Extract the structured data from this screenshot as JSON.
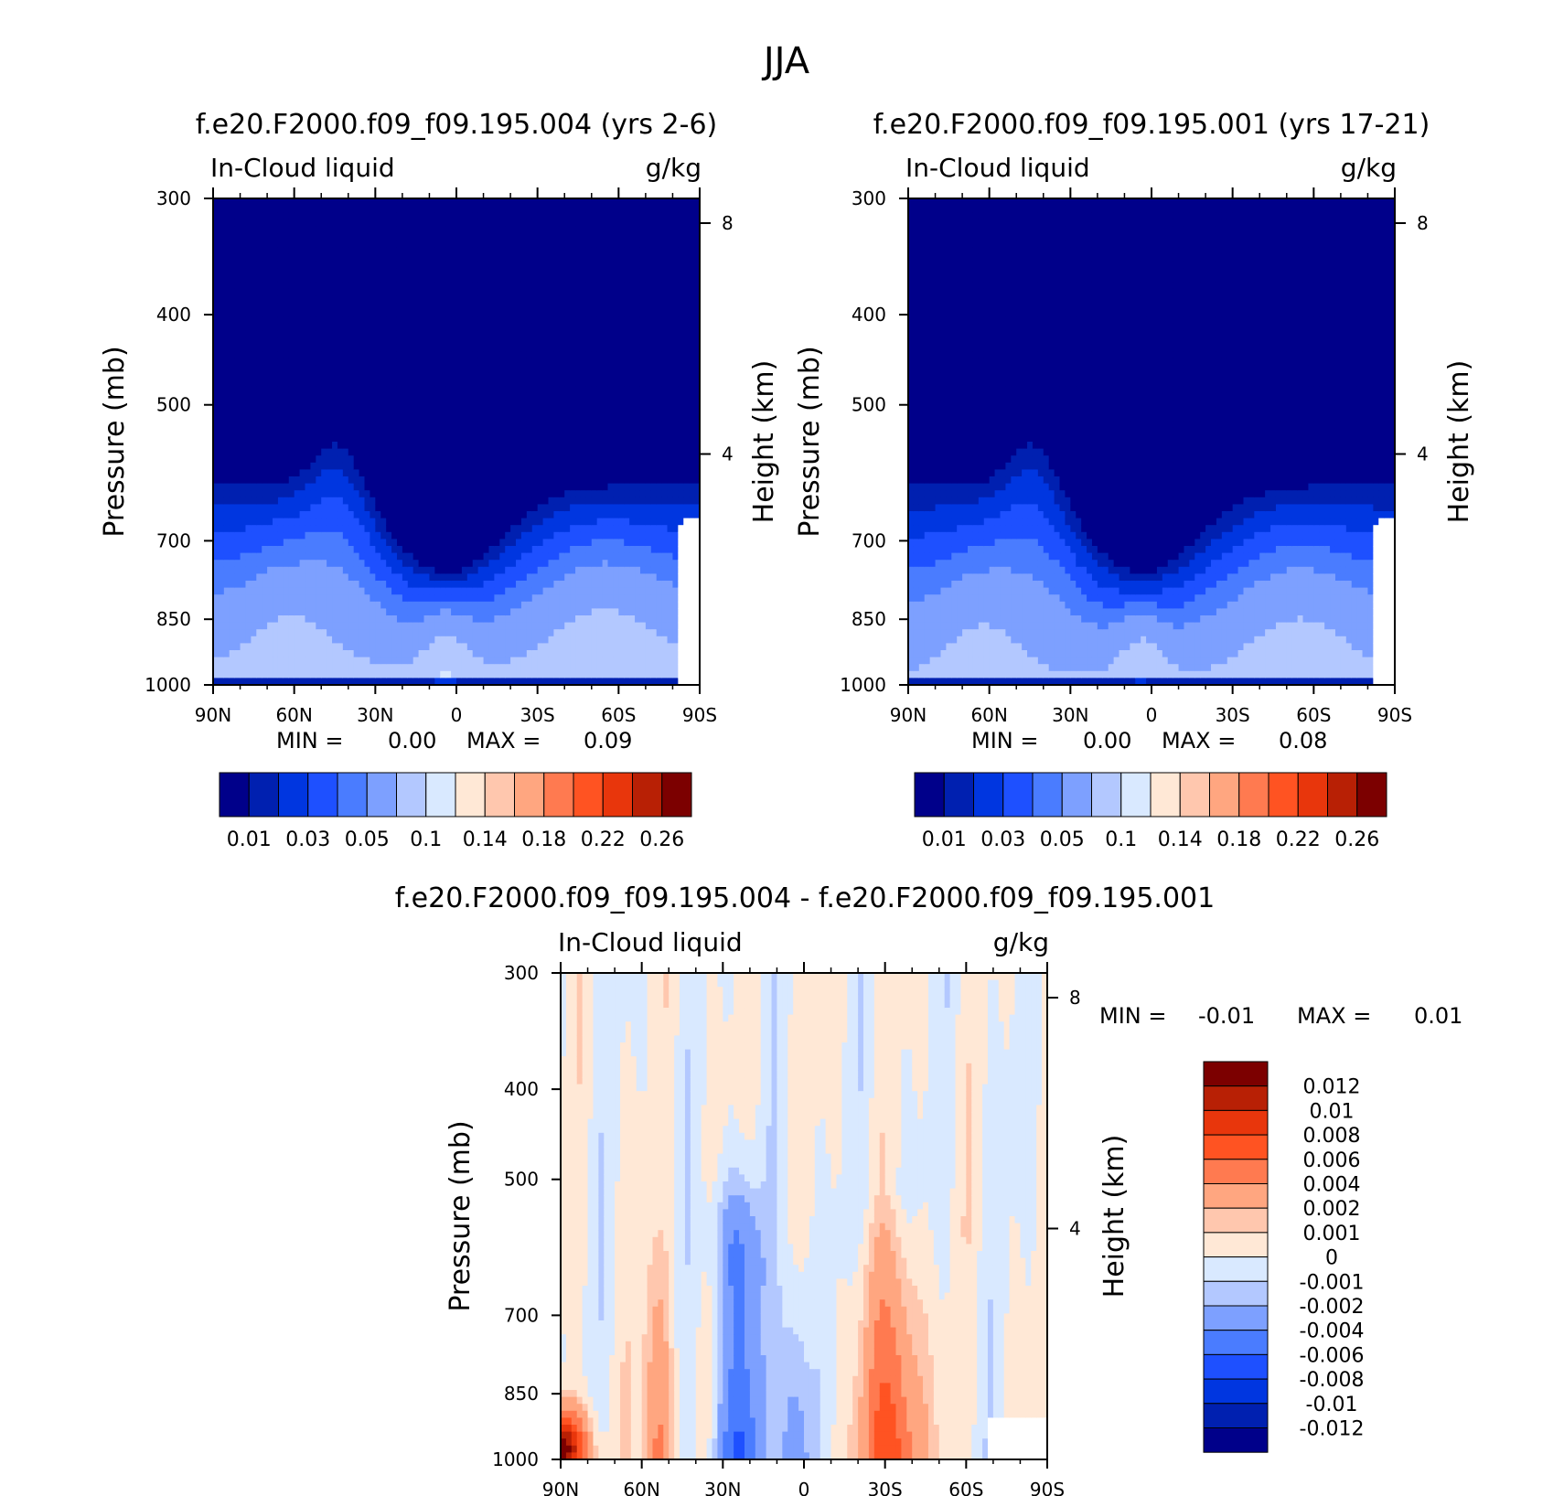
{
  "season": "JJA",
  "chart_data": [
    {
      "type": "heatmap",
      "title": "f.e20.F2000.f09_f09.195.004 (yrs 2-6)",
      "variable": "In-Cloud liquid",
      "units": "g/kg",
      "xlabel": "",
      "ylabel": "Pressure (mb)",
      "y2label": "Height (km)",
      "x_ticks": [
        "90N",
        "60N",
        "30N",
        "0",
        "30S",
        "60S",
        "90S"
      ],
      "xlim": [
        90,
        -90
      ],
      "y_ticks": [
        "300",
        "400",
        "500",
        "700",
        "850",
        "1000"
      ],
      "ylim": [
        1000,
        300
      ],
      "y_scale": "log",
      "y2_ticks": [
        "8",
        "4"
      ],
      "stats": {
        "min_label": "MIN =",
        "min": "0.00",
        "max_label": "MAX =",
        "max": "0.09"
      },
      "colorbar": {
        "orientation": "horizontal",
        "labels": [
          "0.01",
          "0.03",
          "0.05",
          "0.1",
          "0.14",
          "0.18",
          "0.22",
          "0.26"
        ],
        "colors": [
          "#00008a",
          "#0020b0",
          "#0036e0",
          "#1e50ff",
          "#4a7cff",
          "#7da0ff",
          "#b3c8ff",
          "#d9e9ff",
          "#ffe8d6",
          "#ffc7ae",
          "#ffa680",
          "#ff7a50",
          "#ff5322",
          "#e8360c",
          "#b82005",
          "#7c0000"
        ]
      }
    },
    {
      "type": "heatmap",
      "title": "f.e20.F2000.f09_f09.195.001 (yrs 17-21)",
      "variable": "In-Cloud liquid",
      "units": "g/kg",
      "xlabel": "",
      "ylabel": "Pressure (mb)",
      "y2label": "Height (km)",
      "x_ticks": [
        "90N",
        "60N",
        "30N",
        "0",
        "30S",
        "60S",
        "90S"
      ],
      "xlim": [
        90,
        -90
      ],
      "y_ticks": [
        "300",
        "400",
        "500",
        "700",
        "850",
        "1000"
      ],
      "ylim": [
        1000,
        300
      ],
      "y_scale": "log",
      "y2_ticks": [
        "8",
        "4"
      ],
      "stats": {
        "min_label": "MIN =",
        "min": "0.00",
        "max_label": "MAX =",
        "max": "0.08"
      },
      "colorbar": {
        "orientation": "horizontal",
        "labels": [
          "0.01",
          "0.03",
          "0.05",
          "0.1",
          "0.14",
          "0.18",
          "0.22",
          "0.26"
        ],
        "colors": [
          "#00008a",
          "#0020b0",
          "#0036e0",
          "#1e50ff",
          "#4a7cff",
          "#7da0ff",
          "#b3c8ff",
          "#d9e9ff",
          "#ffe8d6",
          "#ffc7ae",
          "#ffa680",
          "#ff7a50",
          "#ff5322",
          "#e8360c",
          "#b82005",
          "#7c0000"
        ]
      }
    },
    {
      "type": "heatmap",
      "title": "f.e20.F2000.f09_f09.195.004 - f.e20.F2000.f09_f09.195.001",
      "variable": "In-Cloud liquid",
      "units": "g/kg",
      "xlabel": "",
      "ylabel": "Pressure (mb)",
      "y2label": "Height (km)",
      "x_ticks": [
        "90N",
        "60N",
        "30N",
        "0",
        "30S",
        "60S",
        "90S"
      ],
      "xlim": [
        90,
        -90
      ],
      "y_ticks": [
        "300",
        "400",
        "500",
        "700",
        "850",
        "1000"
      ],
      "ylim": [
        1000,
        300
      ],
      "y_scale": "log",
      "y2_ticks": [
        "8",
        "4"
      ],
      "stats": {
        "min_label": "MIN =",
        "min": "-0.01",
        "max_label": "MAX =",
        "max": "0.01"
      },
      "colorbar": {
        "orientation": "vertical",
        "labels": [
          "0.012",
          "0.01",
          "0.008",
          "0.006",
          "0.004",
          "0.002",
          "0.001",
          "0",
          "-0.001",
          "-0.002",
          "-0.004",
          "-0.006",
          "-0.008",
          "-0.01",
          "-0.012"
        ],
        "colors": [
          "#7c0000",
          "#b82005",
          "#e8360c",
          "#ff5322",
          "#ff7a50",
          "#ffa680",
          "#ffc7ae",
          "#ffe8d6",
          "#d9e9ff",
          "#b3c8ff",
          "#7da0ff",
          "#4a7cff",
          "#1e50ff",
          "#0036e0",
          "#0020b0",
          "#00008a"
        ]
      }
    }
  ]
}
